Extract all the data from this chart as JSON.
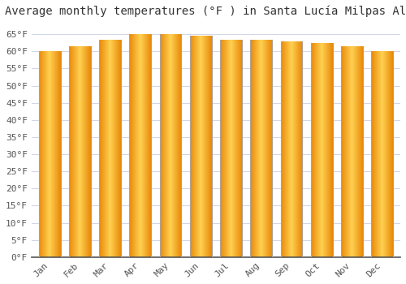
{
  "title": "Average monthly temperatures (°F ) in Santa Lucía Milpas Altas",
  "months": [
    "Jan",
    "Feb",
    "Mar",
    "Apr",
    "May",
    "Jun",
    "Jul",
    "Aug",
    "Sep",
    "Oct",
    "Nov",
    "Dec"
  ],
  "values": [
    60,
    61.5,
    63.5,
    65,
    65,
    64.5,
    63.5,
    63.5,
    63,
    62.5,
    61.5,
    60
  ],
  "ylim": [
    0,
    68
  ],
  "yticks": [
    0,
    5,
    10,
    15,
    20,
    25,
    30,
    35,
    40,
    45,
    50,
    55,
    60,
    65
  ],
  "bar_color_left": "#E8890A",
  "bar_color_center": "#FFD050",
  "bar_edge_color": "#C8A060",
  "background_color": "#ffffff",
  "plot_bg_color": "#ffffff",
  "grid_color": "#d0d8e8",
  "title_fontsize": 10,
  "tick_fontsize": 8,
  "bar_width": 0.72
}
